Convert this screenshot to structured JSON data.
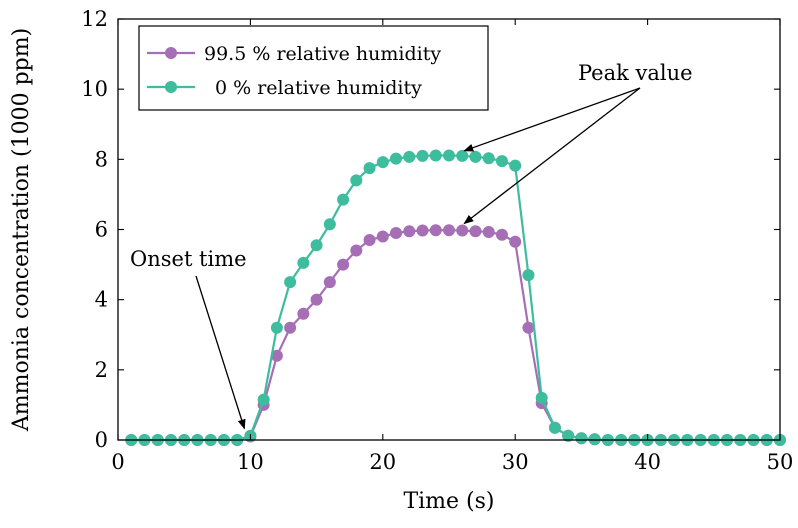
{
  "chart_data": {
    "type": "line",
    "xlabel": "Time (s)",
    "ylabel": "Ammonia concentration (1000 ppm)",
    "xlim": [
      0,
      50
    ],
    "ylim": [
      0,
      12
    ],
    "xticks": [
      0,
      10,
      20,
      30,
      40,
      50
    ],
    "yticks": [
      0,
      2,
      4,
      6,
      8,
      10,
      12
    ],
    "grid": false,
    "legend_position": "top-left",
    "series": [
      {
        "name": "99.5 % relative humidity",
        "color": "#a66fb5",
        "marker": "circle",
        "x": [
          1,
          2,
          3,
          4,
          5,
          6,
          7,
          8,
          9,
          10,
          11,
          12,
          13,
          14,
          15,
          16,
          17,
          18,
          19,
          20,
          21,
          22,
          23,
          24,
          25,
          26,
          27,
          28,
          29,
          30,
          31,
          32,
          33,
          34,
          35,
          36,
          37,
          38,
          39,
          40,
          41,
          42,
          43,
          44,
          45,
          46,
          47,
          48,
          49,
          50
        ],
        "y": [
          0,
          0,
          0,
          0,
          0,
          0,
          0,
          0,
          0,
          0.1,
          1.0,
          2.4,
          3.2,
          3.6,
          4.0,
          4.5,
          5.0,
          5.4,
          5.7,
          5.8,
          5.9,
          5.95,
          5.97,
          5.98,
          5.98,
          5.97,
          5.95,
          5.93,
          5.85,
          5.65,
          3.2,
          1.05,
          0.35,
          0.12,
          0.05,
          0.02,
          0,
          0,
          0,
          0,
          0,
          0,
          0,
          0,
          0,
          0,
          0,
          0,
          0,
          0
        ]
      },
      {
        "name": "0 % relative humidity",
        "color": "#3dbd9d",
        "marker": "circle",
        "x": [
          1,
          2,
          3,
          4,
          5,
          6,
          7,
          8,
          9,
          10,
          11,
          12,
          13,
          14,
          15,
          16,
          17,
          18,
          19,
          20,
          21,
          22,
          23,
          24,
          25,
          26,
          27,
          28,
          29,
          30,
          31,
          32,
          33,
          34,
          35,
          36,
          37,
          38,
          39,
          40,
          41,
          42,
          43,
          44,
          45,
          46,
          47,
          48,
          49,
          50
        ],
        "y": [
          0,
          0,
          0,
          0,
          0,
          0,
          0,
          0,
          0,
          0.12,
          1.15,
          3.2,
          4.5,
          5.05,
          5.55,
          6.15,
          6.85,
          7.4,
          7.75,
          7.92,
          8.02,
          8.07,
          8.1,
          8.11,
          8.11,
          8.1,
          8.07,
          8.03,
          7.95,
          7.82,
          4.7,
          1.2,
          0.35,
          0.12,
          0.05,
          0.02,
          0,
          0,
          0,
          0,
          0,
          0,
          0,
          0,
          0,
          0,
          0,
          0,
          0,
          0
        ]
      }
    ],
    "annotations": [
      {
        "text": "Onset time",
        "target": [
          10,
          0.1
        ]
      },
      {
        "text": "Peak value",
        "targets": [
          [
            26,
            8.1
          ],
          [
            26,
            6.0
          ]
        ]
      }
    ]
  }
}
